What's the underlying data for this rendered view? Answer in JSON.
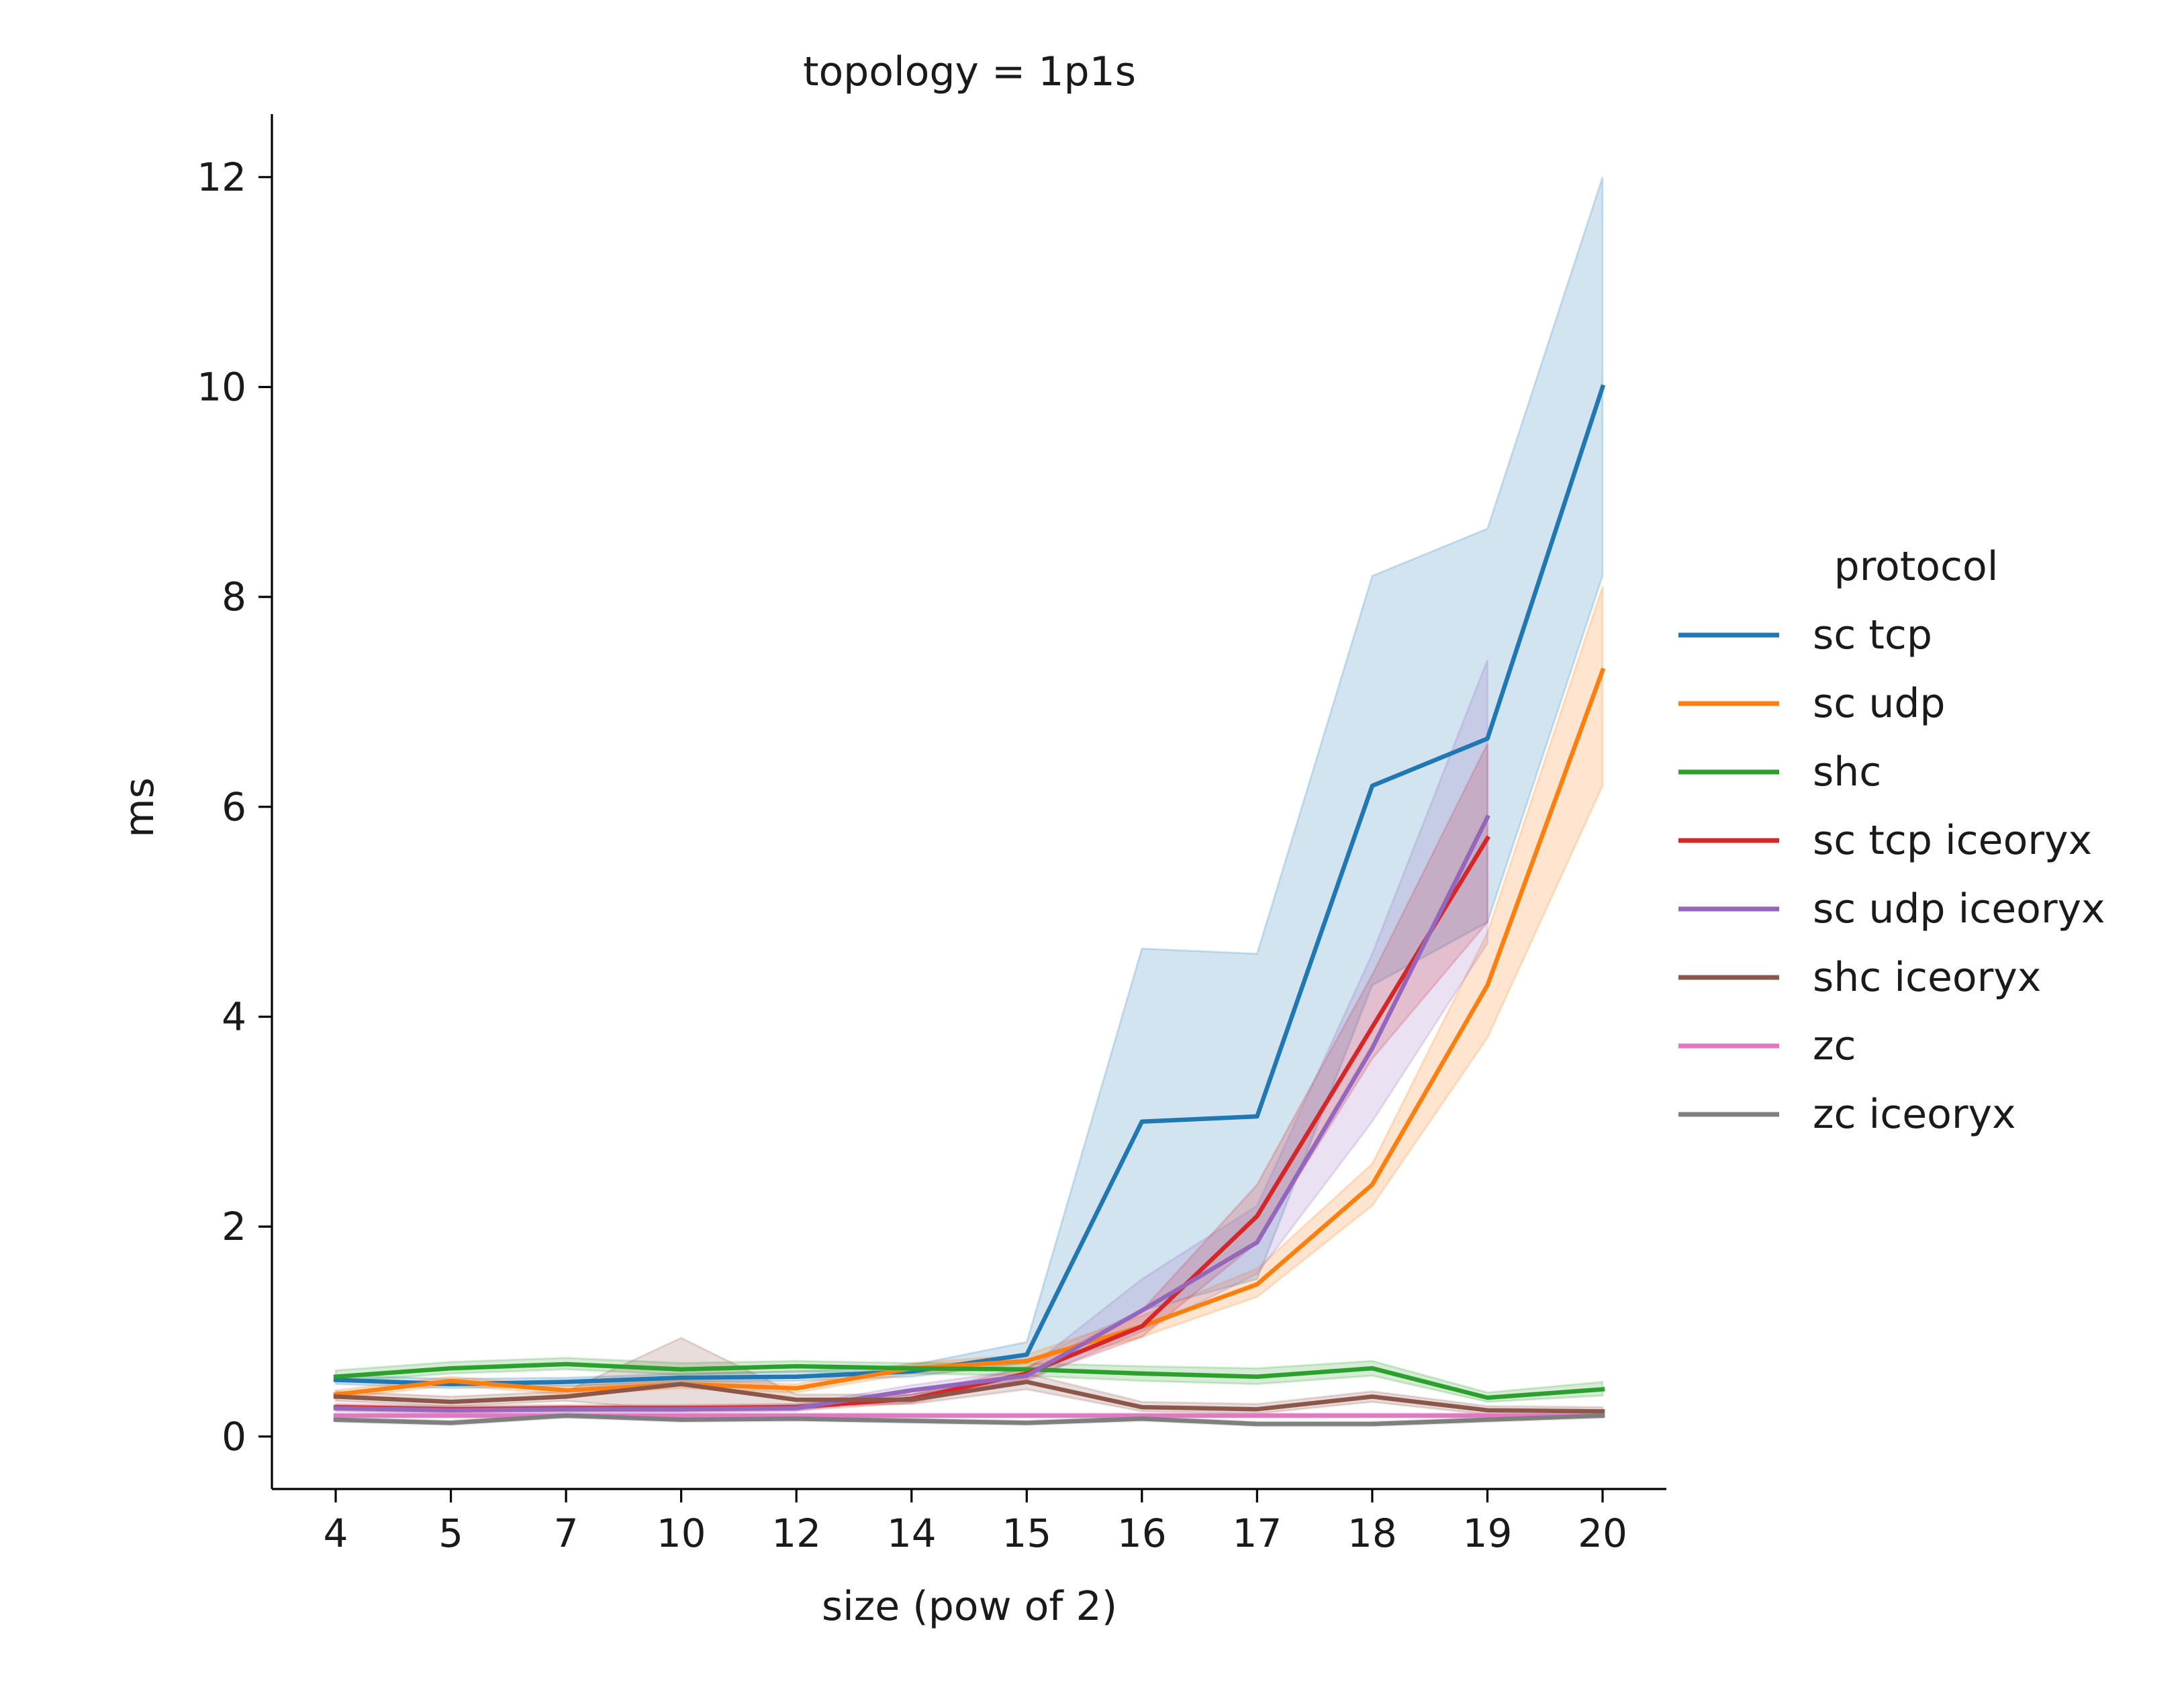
{
  "chart_data": {
    "type": "line",
    "title": "topology = 1p1s",
    "xlabel": "size (pow of 2)",
    "ylabel": "ms",
    "categories": [
      "4",
      "5",
      "7",
      "10",
      "12",
      "14",
      "15",
      "16",
      "17",
      "18",
      "19",
      "20"
    ],
    "ylim": [
      -0.5,
      12.6
    ],
    "yticks": [
      0,
      2,
      4,
      6,
      8,
      10,
      12
    ],
    "grid": false,
    "legend": {
      "title": "protocol",
      "placement": "right"
    },
    "series": [
      {
        "name": "sc tcp",
        "color": "#1f77b4",
        "values": [
          0.54,
          0.5,
          0.52,
          0.56,
          0.57,
          0.62,
          0.78,
          3.0,
          3.05,
          6.2,
          6.65,
          10.0
        ],
        "ci_low": [
          0.5,
          0.46,
          0.48,
          0.52,
          0.53,
          0.57,
          0.7,
          1.2,
          1.5,
          4.3,
          4.9,
          8.2
        ],
        "ci_high": [
          0.58,
          0.55,
          0.56,
          0.6,
          0.62,
          0.68,
          0.9,
          4.65,
          4.6,
          8.2,
          8.65,
          12.0
        ]
      },
      {
        "name": "sc udp",
        "color": "#ff7f0e",
        "values": [
          0.4,
          0.53,
          0.44,
          0.5,
          0.46,
          0.65,
          0.72,
          1.05,
          1.45,
          2.4,
          4.3,
          7.3
        ],
        "ci_low": [
          0.36,
          0.49,
          0.4,
          0.46,
          0.42,
          0.6,
          0.66,
          0.95,
          1.33,
          2.2,
          3.8,
          6.2
        ],
        "ci_high": [
          0.44,
          0.57,
          0.48,
          0.54,
          0.5,
          0.7,
          0.78,
          1.15,
          1.6,
          2.6,
          4.8,
          8.1
        ]
      },
      {
        "name": "shc",
        "color": "#2ca02c",
        "values": [
          0.57,
          0.65,
          0.69,
          0.64,
          0.67,
          0.65,
          0.64,
          0.6,
          0.57,
          0.65,
          0.37,
          0.45
        ],
        "ci_low": [
          0.52,
          0.6,
          0.64,
          0.59,
          0.62,
          0.6,
          0.58,
          0.53,
          0.5,
          0.58,
          0.33,
          0.39
        ],
        "ci_high": [
          0.63,
          0.71,
          0.75,
          0.7,
          0.72,
          0.7,
          0.7,
          0.67,
          0.65,
          0.72,
          0.42,
          0.52
        ]
      },
      {
        "name": "sc tcp iceoryx",
        "color": "#d62728",
        "values": [
          0.28,
          0.26,
          0.27,
          0.27,
          0.28,
          0.36,
          0.6,
          1.05,
          2.1,
          3.9,
          5.7,
          null
        ],
        "ci_low": [
          0.25,
          0.23,
          0.24,
          0.24,
          0.25,
          0.32,
          0.55,
          0.95,
          1.85,
          3.6,
          4.9,
          null
        ],
        "ci_high": [
          0.31,
          0.29,
          0.3,
          0.3,
          0.31,
          0.4,
          0.66,
          1.2,
          2.4,
          4.4,
          6.6,
          null
        ]
      },
      {
        "name": "sc udp iceoryx",
        "color": "#9467bd",
        "values": [
          0.27,
          0.25,
          0.26,
          0.26,
          0.27,
          0.44,
          0.58,
          1.2,
          1.85,
          3.7,
          5.9,
          null
        ],
        "ci_low": [
          0.24,
          0.22,
          0.23,
          0.23,
          0.24,
          0.4,
          0.53,
          1.0,
          1.55,
          3.0,
          4.7,
          null
        ],
        "ci_high": [
          0.3,
          0.28,
          0.29,
          0.29,
          0.3,
          0.49,
          0.64,
          1.5,
          2.2,
          4.6,
          7.4,
          null
        ]
      },
      {
        "name": "shc iceoryx",
        "color": "#8c564b",
        "values": [
          0.38,
          0.33,
          0.38,
          0.5,
          0.35,
          0.35,
          0.52,
          0.28,
          0.26,
          0.38,
          0.25,
          0.24
        ],
        "ci_low": [
          0.34,
          0.29,
          0.34,
          0.25,
          0.3,
          0.31,
          0.45,
          0.24,
          0.22,
          0.33,
          0.21,
          0.2
        ],
        "ci_high": [
          0.43,
          0.38,
          0.43,
          0.94,
          0.4,
          0.4,
          0.6,
          0.33,
          0.31,
          0.43,
          0.29,
          0.28
        ]
      },
      {
        "name": "zc",
        "color": "#e377c2",
        "values": [
          0.2,
          0.2,
          0.2,
          0.2,
          0.2,
          0.2,
          0.2,
          0.2,
          0.2,
          0.2,
          0.2,
          0.2
        ],
        "ci_low": [
          0.18,
          0.18,
          0.18,
          0.18,
          0.18,
          0.18,
          0.18,
          0.18,
          0.18,
          0.18,
          0.18,
          0.18
        ],
        "ci_high": [
          0.22,
          0.22,
          0.22,
          0.22,
          0.22,
          0.22,
          0.22,
          0.22,
          0.22,
          0.22,
          0.22,
          0.22
        ]
      },
      {
        "name": "zc iceoryx",
        "color": "#7f7f7f",
        "values": [
          0.16,
          0.13,
          0.2,
          0.16,
          0.17,
          0.15,
          0.13,
          0.17,
          0.12,
          0.12,
          0.16,
          0.2
        ],
        "ci_low": [
          0.14,
          0.11,
          0.18,
          0.14,
          0.15,
          0.13,
          0.11,
          0.15,
          0.1,
          0.1,
          0.14,
          0.18
        ],
        "ci_high": [
          0.18,
          0.15,
          0.22,
          0.18,
          0.19,
          0.17,
          0.15,
          0.19,
          0.14,
          0.14,
          0.18,
          0.22
        ]
      }
    ]
  }
}
